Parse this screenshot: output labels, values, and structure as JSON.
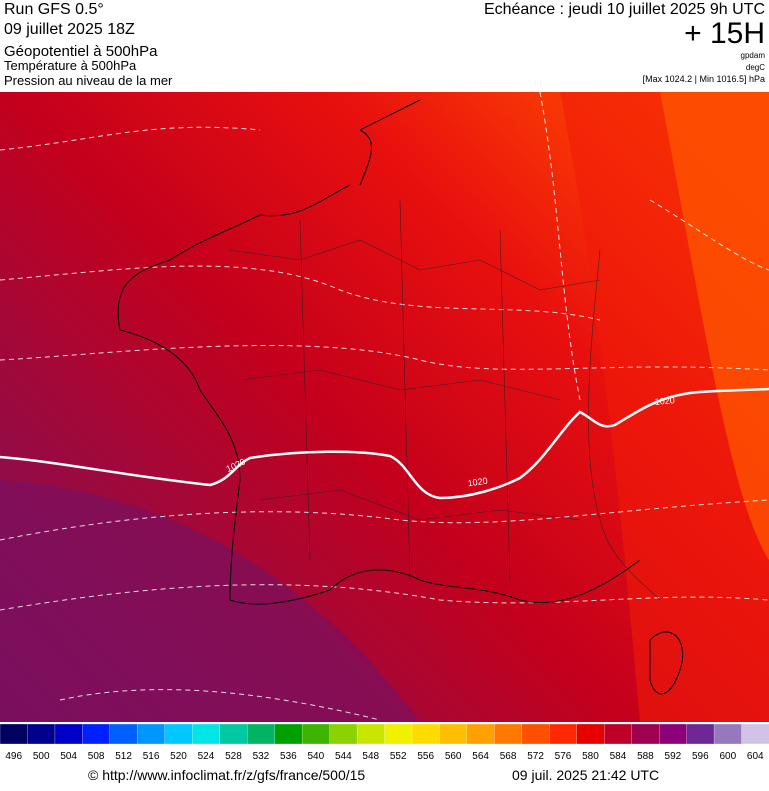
{
  "header": {
    "run": "Run GFS 0.5°",
    "date": "09 juillet 2025 18Z",
    "title": "Géopotentiel à 500hPa",
    "subtitle1": "Température à 500hPa",
    "subtitle2": "Pression au niveau de la mer",
    "echeance": "Echéance : jeudi 10 juillet 2025 9h UTC",
    "offset": "+ 15H",
    "unit1": "gpdam",
    "unit2": "degC",
    "range": "[Max 1024.2 | Min 1016.5] hPa"
  },
  "map": {
    "contour_labels": [
      "1020",
      "1020",
      "1020"
    ]
  },
  "colorbar": {
    "labels": [
      496,
      500,
      504,
      508,
      512,
      516,
      520,
      524,
      528,
      532,
      536,
      540,
      544,
      548,
      552,
      556,
      560,
      564,
      568,
      572,
      576,
      580,
      584,
      588,
      592,
      596,
      600,
      604
    ],
    "colors": [
      "#000060",
      "#00008c",
      "#0000c8",
      "#0020ff",
      "#0060ff",
      "#0096ff",
      "#00c8ff",
      "#00e6e6",
      "#00c8a0",
      "#00b464",
      "#00a000",
      "#3cb400",
      "#8cd200",
      "#c8e600",
      "#f0f000",
      "#ffdc00",
      "#ffbe00",
      "#ffa000",
      "#ff7800",
      "#ff5000",
      "#ff2800",
      "#e60000",
      "#be0028",
      "#a00050",
      "#8c0078",
      "#6e2896",
      "#9678be",
      "#d2c3e6"
    ]
  },
  "footer": {
    "url": "© http://www.infoclimat.fr/z/gfs/france/500/15",
    "timestamp": "09 juil. 2025 21:42 UTC"
  }
}
